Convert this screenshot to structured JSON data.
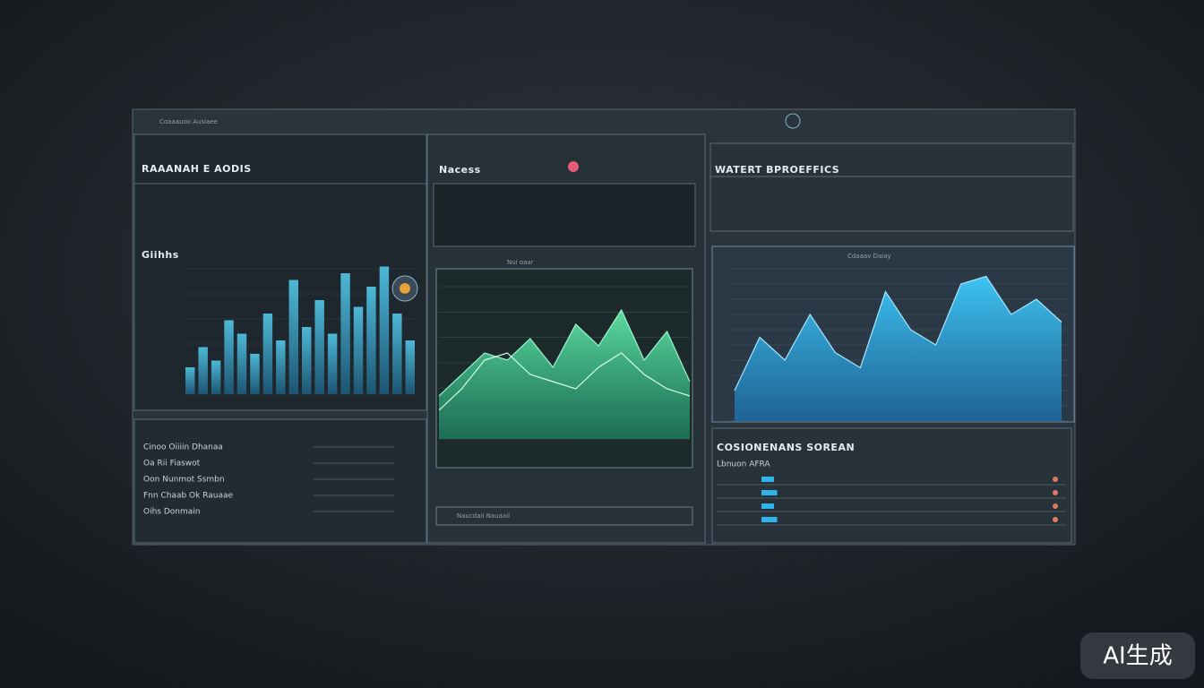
{
  "window": {
    "title": "Coaaauoo Ausiaee"
  },
  "panels": {
    "left": {
      "title": "RAAANAH E AODIS",
      "subtitle": "Giihhs",
      "rows": [
        "Cinoo Oiiiin Dhanaa",
        "Oa Rii Fiaswot",
        "Oon Nunmot Ssmbn",
        "Fnn Chaab Ok Rauaae",
        "Oihs Donmain"
      ]
    },
    "middle": {
      "title": "Nacess",
      "chart_title": "Nui oaar",
      "footer": "Naucdaii Nauaaii"
    },
    "right": {
      "title": "WATERT BPROEFFICS",
      "chart_title": "Cdaaav Daiay",
      "list_title": "COSIONENANS SOREAN",
      "list_sub": "Lbnuon AFRA"
    }
  },
  "charts": {
    "left_bars": [
      20,
      35,
      25,
      55,
      45,
      30,
      60,
      40,
      85,
      50,
      70,
      45,
      90,
      65,
      80,
      95,
      60,
      40
    ],
    "green_area": [
      30,
      45,
      60,
      55,
      70,
      50,
      80,
      65,
      90,
      55,
      75,
      40
    ],
    "green_line": [
      20,
      35,
      55,
      60,
      45,
      40,
      35,
      50,
      60,
      45,
      35,
      30
    ],
    "blue_area": [
      20,
      55,
      40,
      70,
      45,
      35,
      85,
      60,
      50,
      90,
      95,
      70,
      80,
      65
    ],
    "right_list": [
      20,
      25,
      20,
      25
    ]
  },
  "watermark": "AI生成"
}
